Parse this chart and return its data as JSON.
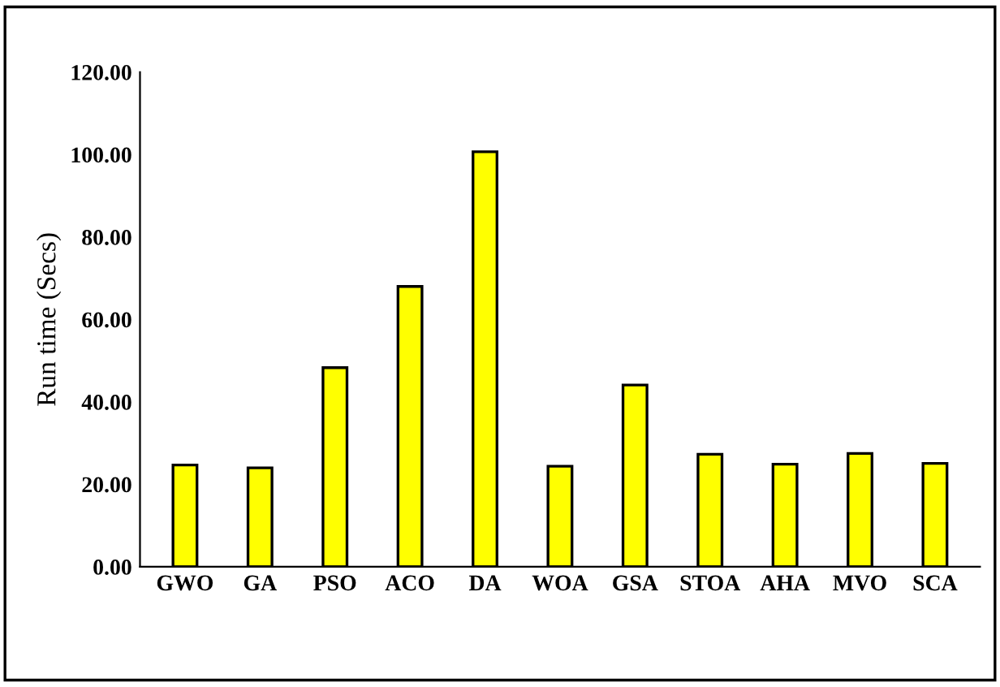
{
  "chart_data": {
    "type": "bar",
    "ylabel": "Run time (Secs)",
    "categories": [
      "GWO",
      "GA",
      "PSO",
      "ACO",
      "DA",
      "WOA",
      "GSA",
      "STOA",
      "AHA",
      "MVO",
      "SCA"
    ],
    "values": [
      24.7,
      24.0,
      48.3,
      68.0,
      100.7,
      24.4,
      44.1,
      27.3,
      24.9,
      27.5,
      25.1
    ],
    "color": "#ffff00",
    "ylim": [
      0,
      120
    ],
    "yticks": [
      {
        "value": 0,
        "label": "0.00"
      },
      {
        "value": 20,
        "label": "20.00"
      },
      {
        "value": 40,
        "label": "40.00"
      },
      {
        "value": 60,
        "label": "60.00"
      },
      {
        "value": 80,
        "label": "80.00"
      },
      {
        "value": 100,
        "label": "100.00"
      },
      {
        "value": 120,
        "label": "120.00"
      }
    ],
    "grid": false
  }
}
